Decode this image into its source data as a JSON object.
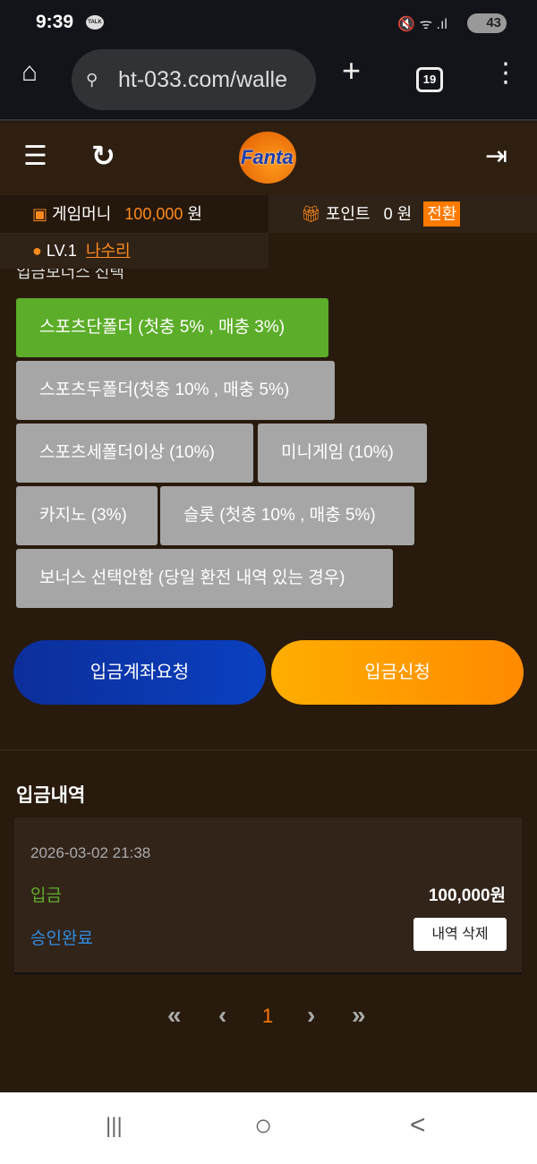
{
  "status_bar": {
    "time": "9:39",
    "talk_badge": "TALK",
    "icons": "🔇 ᯤ .ıl",
    "battery": "43"
  },
  "browser": {
    "url": "ht-033.com/walle",
    "tab_count": "19",
    "home": "⌂",
    "new_tab": "+",
    "menu": "⋮",
    "tune": "⚲"
  },
  "header": {
    "menu": "☰",
    "refresh": "↻",
    "logo_text": "Fanta",
    "logout": "⇥"
  },
  "account": {
    "game_money_label": "게임머니",
    "game_money": "100,000",
    "currency": "원",
    "point_label": "포인트",
    "point": "0",
    "point_currency": "원",
    "convert_label": "전환",
    "level": "LV.1",
    "username": "나수리"
  },
  "bonus": {
    "title": "입금보너스 선택",
    "options": [
      {
        "label": "스포츠단폴더 (첫충 5% , 매충 3%)",
        "selected": true
      },
      {
        "label": "스포츠두폴더(첫충 10% , 매충 5%)",
        "selected": false
      },
      {
        "label": "스포츠세폴더이상 (10%)",
        "selected": false
      },
      {
        "label": "미니게임 (10%)",
        "selected": false
      },
      {
        "label": "카지노 (3%)",
        "selected": false
      },
      {
        "label": "슬롯 (첫충 10% , 매충 5%)",
        "selected": false
      },
      {
        "label": "보너스 선택안함 (당일 환전 내역 있는 경우)",
        "selected": false
      }
    ]
  },
  "actions": {
    "account_request": "입금계좌요청",
    "deposit_request": "입금신청"
  },
  "history": {
    "title": "입금내역",
    "items": [
      {
        "date": "2026-03-02 21:38",
        "type": "입금",
        "amount": "100,000원",
        "status": "승인완료",
        "delete_label": "내역 삭제"
      }
    ]
  },
  "pagination": {
    "first": "«",
    "prev": "‹",
    "current": "1",
    "next": "›",
    "last": "»"
  },
  "nav": {
    "recents": "|||",
    "home": "○",
    "back": "<"
  },
  "colors": {
    "accent": "#ff8a1c",
    "selected": "#5cad29",
    "status_ok": "#2f8ee0"
  }
}
